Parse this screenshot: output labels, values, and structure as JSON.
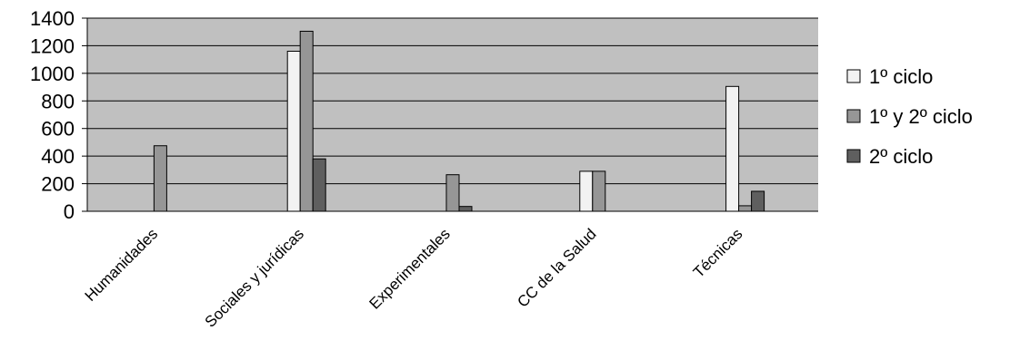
{
  "chart_data": {
    "type": "bar",
    "title": "",
    "xlabel": "",
    "ylabel": "",
    "categories": [
      "Humanidades",
      "Sociales y jurídicas",
      "Experimentales",
      "CC de la Salud",
      "Técnicas"
    ],
    "series": [
      {
        "name": "1º ciclo",
        "values": [
          0,
          1160,
          0,
          290,
          905
        ],
        "color": "#f2f2f2"
      },
      {
        "name": "1º y 2º ciclo",
        "values": [
          475,
          1305,
          265,
          290,
          40
        ],
        "color": "#969696"
      },
      {
        "name": "2º ciclo",
        "values": [
          0,
          380,
          35,
          0,
          145
        ],
        "color": "#5f5f5f"
      }
    ],
    "ylim": [
      0,
      1400
    ],
    "yticks": [
      0,
      200,
      400,
      600,
      800,
      1000,
      1200,
      1400
    ],
    "grid": true,
    "plot_background": "#c0c0c0",
    "legend_position": "right"
  }
}
